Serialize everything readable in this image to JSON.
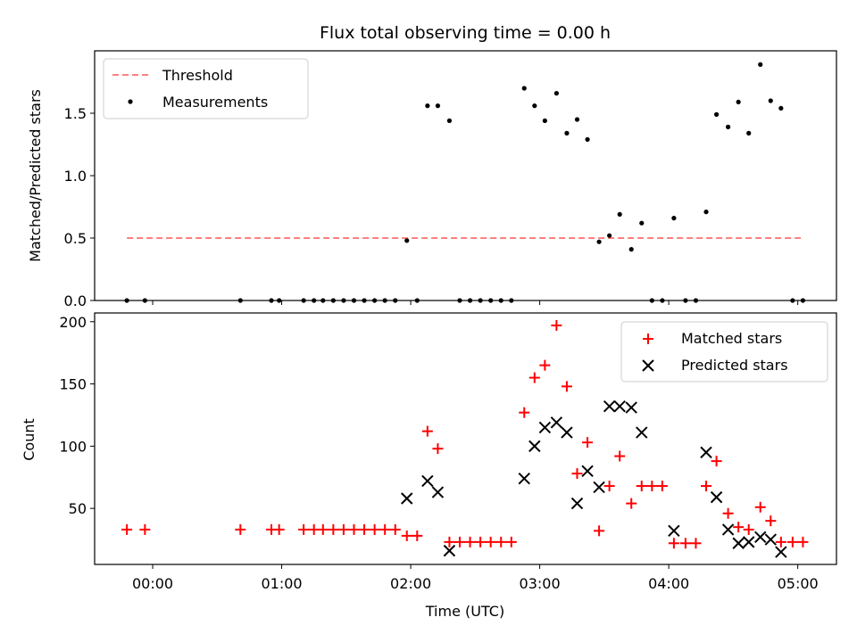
{
  "chart_data": [
    {
      "type": "scatter",
      "title": "Flux total observing time = 0.00 h",
      "xlabel": "",
      "ylabel": "Matched/Predicted stars",
      "xlim": [
        -0.45,
        5.3
      ],
      "ylim": [
        0,
        2.0
      ],
      "yticks": [
        "0.0",
        "0.5",
        "1.0",
        "1.5"
      ],
      "ytick_values": [
        0,
        0.5,
        1.0,
        1.5
      ],
      "legend_position": "top-left",
      "threshold": {
        "name": "Threshold",
        "value": 0.5,
        "x": [
          -0.2,
          5.05
        ],
        "color": "#ff8080"
      },
      "series": [
        {
          "name": "Measurements",
          "color": "#000000",
          "x": [
            -0.2,
            -0.06,
            0.68,
            0.92,
            0.98,
            1.17,
            1.25,
            1.32,
            1.4,
            1.48,
            1.56,
            1.64,
            1.72,
            1.8,
            1.88,
            1.97,
            2.05,
            2.13,
            2.21,
            2.3,
            2.38,
            2.46,
            2.54,
            2.62,
            2.7,
            2.78,
            2.88,
            2.96,
            3.04,
            3.13,
            3.21,
            3.29,
            3.37,
            3.46,
            3.54,
            3.62,
            3.71,
            3.79,
            3.87,
            3.95,
            4.04,
            4.13,
            4.21,
            4.29,
            4.37,
            4.46,
            4.54,
            4.62,
            4.71,
            4.79,
            4.87,
            4.96,
            5.04
          ],
          "y": [
            0,
            0,
            0,
            0,
            0,
            0,
            0,
            0,
            0,
            0,
            0,
            0,
            0,
            0,
            0,
            0.48,
            0,
            1.56,
            1.56,
            1.44,
            0,
            0,
            0,
            0,
            0,
            0,
            1.7,
            1.56,
            1.44,
            1.66,
            1.34,
            1.45,
            1.29,
            0.47,
            0.52,
            0.69,
            0.41,
            0.62,
            0,
            0,
            0.66,
            0,
            0,
            0.71,
            1.49,
            1.39,
            1.59,
            1.34,
            1.89,
            1.6,
            1.54,
            0,
            0
          ]
        }
      ]
    },
    {
      "type": "scatter",
      "xlabel": "Time (UTC)",
      "ylabel": "Count",
      "xlim": [
        -0.45,
        5.3
      ],
      "ylim": [
        5,
        207
      ],
      "xticks": [
        "00:00",
        "01:00",
        "02:00",
        "03:00",
        "04:00",
        "05:00"
      ],
      "xtick_values": [
        0,
        1,
        2,
        3,
        4,
        5
      ],
      "yticks": [
        "50",
        "100",
        "150",
        "200"
      ],
      "ytick_values": [
        50,
        100,
        150,
        200
      ],
      "legend_position": "top-right",
      "series": [
        {
          "name": "Matched stars",
          "color": "#ff0000",
          "marker": "plus",
          "x": [
            -0.2,
            -0.06,
            0.68,
            0.92,
            0.98,
            1.17,
            1.25,
            1.32,
            1.4,
            1.48,
            1.56,
            1.64,
            1.72,
            1.8,
            1.88,
            1.97,
            2.05,
            2.13,
            2.21,
            2.3,
            2.38,
            2.46,
            2.54,
            2.62,
            2.7,
            2.78,
            2.88,
            2.96,
            3.04,
            3.13,
            3.21,
            3.29,
            3.37,
            3.46,
            3.54,
            3.62,
            3.71,
            3.79,
            3.87,
            3.95,
            4.04,
            4.13,
            4.21,
            4.29,
            4.37,
            4.46,
            4.54,
            4.62,
            4.71,
            4.79,
            4.87,
            4.96,
            5.04
          ],
          "y": [
            33,
            33,
            33,
            33,
            33,
            33,
            33,
            33,
            33,
            33,
            33,
            33,
            33,
            33,
            33,
            28,
            28,
            112,
            98,
            23,
            23,
            23,
            23,
            23,
            23,
            23,
            127,
            155,
            165,
            197,
            148,
            78,
            103,
            32,
            68,
            92,
            54,
            68,
            68,
            68,
            22,
            22,
            22,
            68,
            88,
            46,
            35,
            33,
            51,
            40,
            23,
            23,
            23
          ]
        },
        {
          "name": "Predicted stars",
          "color": "#000000",
          "marker": "x",
          "x": [
            1.97,
            2.13,
            2.21,
            2.3,
            2.88,
            2.96,
            3.04,
            3.13,
            3.21,
            3.29,
            3.37,
            3.46,
            3.54,
            3.62,
            3.71,
            3.79,
            4.04,
            4.29,
            4.37,
            4.46,
            4.54,
            4.62,
            4.71,
            4.79,
            4.87
          ],
          "y": [
            58,
            72,
            63,
            16,
            74,
            100,
            115,
            119,
            111,
            54,
            80,
            67,
            132,
            132,
            131,
            111,
            32,
            95,
            59,
            33,
            22,
            23,
            27,
            25,
            15
          ]
        }
      ]
    }
  ]
}
